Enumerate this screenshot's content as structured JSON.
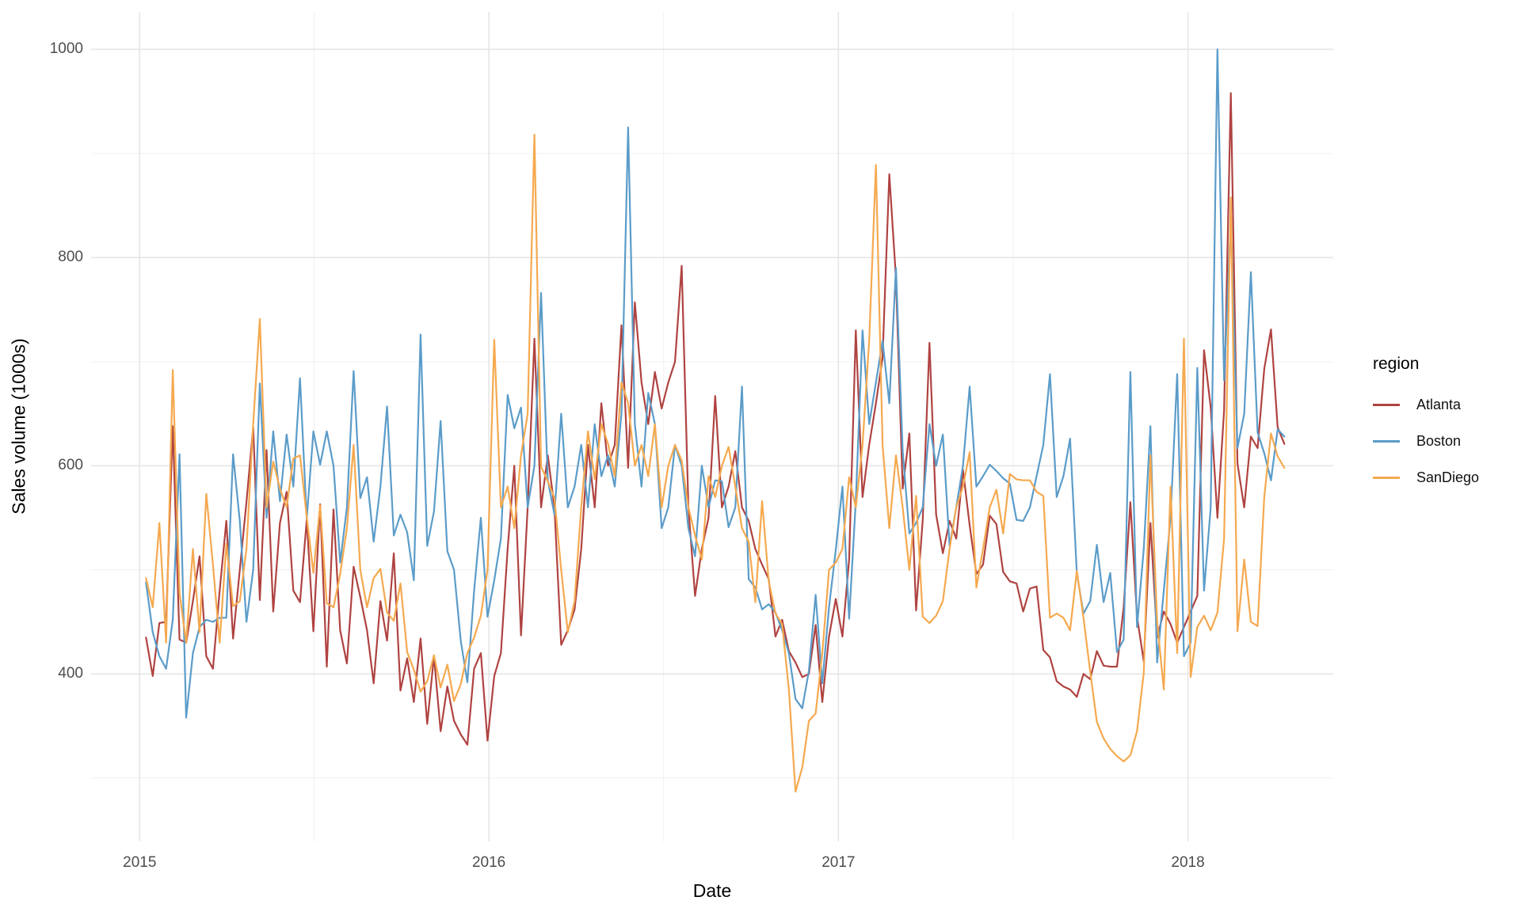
{
  "chart_data": {
    "type": "line",
    "title": "",
    "xlabel": "Date",
    "ylabel": "Sales volume (1000s)",
    "legend_title": "region",
    "legend_position": "right",
    "grid": "major and minor, light gray on white (ggplot theme_minimal style)",
    "x_start_date": "2015-01-04",
    "x_interval_days": 7,
    "x_tick_labels": [
      "2015",
      "2016",
      "2017",
      "2018"
    ],
    "x_tick_weeks": [
      -0.95,
      51.2,
      103.4,
      155.6
    ],
    "x_minor_tick_weeks": [
      25.1,
      77.3,
      129.5
    ],
    "x_domain_weeks": [
      -8.2,
      177.3
    ],
    "y_ticks": [
      400,
      600,
      800,
      1000
    ],
    "y_minor_ticks": [
      300,
      500,
      700,
      900
    ],
    "y_domain": [
      239,
      1036
    ],
    "colors": {
      "grid_major": "#E6E6E6",
      "grid_minor": "#F0F0F0",
      "axis_text": "#4D4D4D"
    },
    "series": [
      {
        "name": "Atlanta",
        "color": "#AF4341",
        "values": [
          435,
          398,
          449,
          450,
          638,
          433,
          430,
          470,
          513,
          417,
          405,
          480,
          547,
          434,
          500,
          565,
          637,
          471,
          615,
          460,
          545,
          575,
          480,
          469,
          548,
          441,
          563,
          407,
          558,
          442,
          410,
          503,
          474,
          442,
          391,
          470,
          432,
          516,
          384,
          415,
          373,
          434,
          352,
          417,
          345,
          388,
          355,
          342,
          332,
          405,
          420,
          336,
          398,
          420,
          520,
          600,
          437,
          560,
          722,
          560,
          610,
          560,
          428,
          442,
          462,
          520,
          620,
          560,
          660,
          600,
          620,
          735,
          598,
          757,
          680,
          640,
          690,
          655,
          680,
          700,
          792,
          560,
          475,
          520,
          550,
          667,
          560,
          580,
          614,
          560,
          547,
          520,
          505,
          491,
          436,
          452,
          422,
          411,
          397,
          400,
          447,
          373,
          436,
          472,
          436,
          510,
          730,
          570,
          620,
          660,
          704,
          880,
          780,
          578,
          631,
          461,
          548,
          718,
          553,
          516,
          547,
          530,
          596,
          543,
          496,
          505,
          552,
          544,
          498,
          489,
          487,
          460,
          482,
          484,
          423,
          416,
          393,
          388,
          385,
          378,
          400,
          395,
          422,
          408,
          407,
          407,
          464,
          565,
          455,
          412,
          545,
          435,
          460,
          448,
          430,
          445,
          460,
          475,
          711,
          656,
          550,
          653,
          958,
          602,
          560,
          628,
          617,
          693,
          731,
          637,
          621
        ]
      },
      {
        "name": "Boston",
        "color": "#5B9CC9",
        "values": [
          488,
          440,
          417,
          405,
          452,
          611,
          358,
          420,
          445,
          452,
          450,
          454,
          454,
          611,
          547,
          450,
          500,
          679,
          550,
          633,
          566,
          630,
          580,
          684,
          549,
          633,
          601,
          633,
          600,
          507,
          560,
          691,
          569,
          589,
          527,
          580,
          657,
          533,
          553,
          536,
          490,
          726,
          523,
          556,
          643,
          518,
          500,
          432,
          392,
          480,
          550,
          455,
          490,
          530,
          668,
          636,
          656,
          560,
          600,
          766,
          586,
          553,
          650,
          560,
          580,
          620,
          560,
          640,
          590,
          610,
          580,
          650,
          925,
          640,
          580,
          670,
          640,
          540,
          560,
          620,
          600,
          540,
          513,
          600,
          560,
          586,
          585,
          541,
          560,
          676,
          491,
          483,
          462,
          467,
          459,
          442,
          420,
          376,
          367,
          403,
          476,
          391,
          464,
          519,
          580,
          453,
          566,
          730,
          640,
          680,
          720,
          660,
          790,
          614,
          535,
          545,
          560,
          640,
          600,
          630,
          523,
          560,
          600,
          676,
          580,
          590,
          601,
          595,
          588,
          583,
          548,
          547,
          560,
          590,
          620,
          688,
          570,
          590,
          626,
          497,
          458,
          470,
          524,
          469,
          497,
          421,
          433,
          690,
          445,
          520,
          638,
          411,
          480,
          550,
          688,
          417,
          430,
          694,
          480,
          560,
          1000,
          682,
          835,
          617,
          650,
          786,
          632,
          612,
          586,
          635,
          628
        ]
      },
      {
        "name": "SanDiego",
        "color": "#F5A94F",
        "values": [
          492,
          464,
          545,
          430,
          692,
          478,
          430,
          520,
          440,
          573,
          505,
          430,
          525,
          465,
          470,
          520,
          640,
          741,
          560,
          604,
          578,
          560,
          607,
          610,
          551,
          497,
          562,
          468,
          464,
          496,
          540,
          620,
          500,
          464,
          492,
          501,
          459,
          451,
          487,
          421,
          404,
          383,
          393,
          418,
          387,
          409,
          374,
          390,
          420,
          435,
          456,
          500,
          721,
          560,
          580,
          540,
          610,
          650,
          918,
          599,
          585,
          569,
          500,
          440,
          470,
          560,
          633,
          587,
          640,
          621,
          590,
          680,
          660,
          600,
          620,
          590,
          640,
          560,
          600,
          620,
          605,
          560,
          533,
          510,
          590,
          570,
          600,
          618,
          580,
          540,
          527,
          469,
          566,
          489,
          458,
          448,
          385,
          287,
          310,
          355,
          362,
          420,
          500,
          507,
          520,
          589,
          560,
          620,
          720,
          889,
          620,
          540,
          610,
          560,
          500,
          571,
          455,
          449,
          456,
          470,
          520,
          560,
          580,
          613,
          483,
          520,
          560,
          577,
          535,
          592,
          587,
          586,
          586,
          575,
          571,
          454,
          458,
          454,
          442,
          499,
          454,
          402,
          354,
          338,
          328,
          321,
          316,
          322,
          345,
          401,
          610,
          450,
          385,
          580,
          420,
          722,
          397,
          445,
          456,
          442,
          459,
          530,
          858,
          441,
          510,
          450,
          446,
          570,
          631,
          609,
          598
        ]
      }
    ]
  }
}
